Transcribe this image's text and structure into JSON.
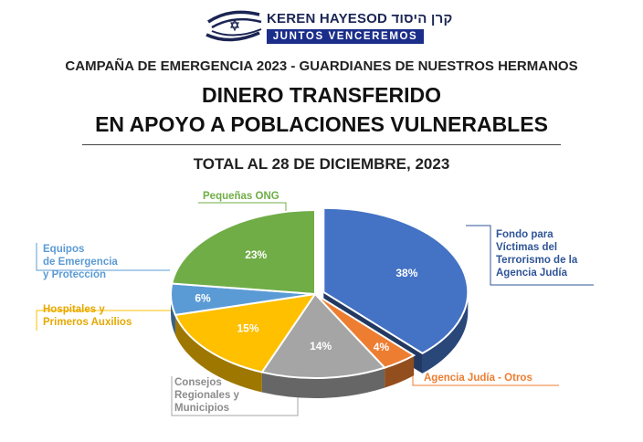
{
  "header": {
    "logo_name": "KEREN HAYESOD קרן היסוד",
    "logo_tagline": "JUNTOS VENCEREMOS",
    "campaign": "CAMPAÑA DE EMERGENCIA 2023 - GUARDIANES DE NUESTROS HERMANOS",
    "title_line1": "DINERO TRANSFERIDO",
    "title_line2": "EN APOYO A POBLACIONES VULNERABLES",
    "subtitle": "TOTAL AL 28 DE DICIEMBRE, 2023"
  },
  "colors": {
    "navy": "#1b2e8a",
    "blue": "#4472c4",
    "orange": "#ed7d31",
    "gray": "#a5a5a5",
    "yellow": "#ffc000",
    "light_blue": "#5b9bd5",
    "green": "#70ad47"
  },
  "chart_data": {
    "type": "pie",
    "title": "DINERO TRANSFERIDO EN APOYO A POBLACIONES VULNERABLES",
    "subtitle": "TOTAL AL 28 DE DICIEMBRE, 2023",
    "unit": "%",
    "slices": [
      {
        "label": "Fondo para Víctimas del Terrorismo de la Agencia Judía",
        "value": 38,
        "display": "38%",
        "color": "#4472c4",
        "exploded": true
      },
      {
        "label": "Agencia Judía - Otros",
        "value": 4,
        "display": "4%",
        "color": "#ed7d31",
        "exploded": false
      },
      {
        "label": "Consejos Regionales y Municipios",
        "value": 14,
        "display": "14%",
        "color": "#a5a5a5",
        "exploded": false
      },
      {
        "label": "Hospitales y Primeros Auxilios",
        "value": 15,
        "display": "15%",
        "color": "#ffc000",
        "exploded": false
      },
      {
        "label": "Equipos de Emergencia y Protección",
        "value": 6,
        "display": "6%",
        "color": "#5b9bd5",
        "exploded": false
      },
      {
        "label": "Pequeñas ONG",
        "value": 23,
        "display": "23%",
        "color": "#70ad47",
        "exploded": false
      }
    ]
  },
  "callouts": {
    "fondo": [
      "Fondo para",
      "Víctimas del",
      "Terrorismo de la",
      "Agencia Judía"
    ],
    "otros": [
      "Agencia Judía - Otros"
    ],
    "consejos": [
      "Consejos",
      "Regionales y",
      "Municipios"
    ],
    "hospitales": [
      "Hospitales y",
      "Primeros Auxilios"
    ],
    "equipos": [
      "Equipos",
      "de Emergencia",
      "y Protección"
    ],
    "ong": [
      "Pequeñas ONG"
    ]
  }
}
